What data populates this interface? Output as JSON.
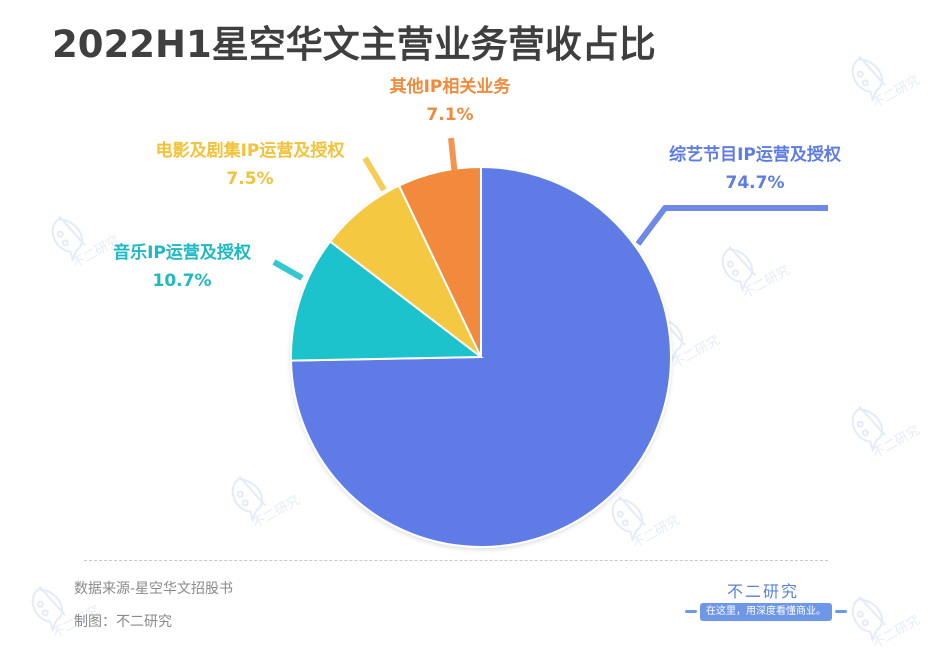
{
  "title": "2022H1星空华文主营业务营收占比",
  "chart_data": {
    "type": "pie",
    "title": "2022H1星空华文主营业务营收占比",
    "categories": [
      "综艺节目IP运营及授权",
      "音乐IP运营及授权",
      "电影及剧集IP运营及授权",
      "其他IP相关业务"
    ],
    "values": [
      74.7,
      10.7,
      7.5,
      7.1
    ],
    "unit": "%",
    "labels": [
      "74.7%",
      "10.7%",
      "7.5%",
      "7.1%"
    ],
    "colors": [
      "#5e7ce6",
      "#1fc2cc",
      "#f5c842",
      "#f28a3d"
    ],
    "start_angle": "top",
    "direction": "clockwise",
    "legend": "none (callout labels with leader lines)"
  },
  "labels": {
    "variety": {
      "name": "综艺节目IP运营及授权",
      "pct": "74.7%"
    },
    "music": {
      "name": "音乐IP运营及授权",
      "pct": "10.7%"
    },
    "film": {
      "name": "电影及剧集IP运营及授权",
      "pct": "7.5%"
    },
    "other": {
      "name": "其他IP相关业务",
      "pct": "7.1%"
    }
  },
  "footer": {
    "source": "数据来源-星空华文招股书",
    "credit": "制图：不二研究",
    "brand": "不二研究",
    "slogan": "在这里，用深度看懂商业。"
  },
  "watermark_text": "不二研究"
}
